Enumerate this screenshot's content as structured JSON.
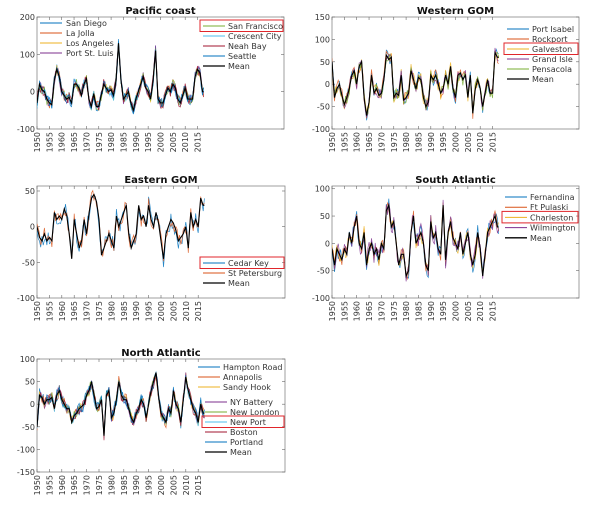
{
  "chart_data": [
    {
      "type": "line",
      "title": "Pacific coast",
      "x_start": 1950,
      "xlim": [
        1950,
        2050
      ],
      "xticks": [
        1950,
        1955,
        1960,
        1965,
        1970,
        1975,
        1980,
        1985,
        1990,
        1995,
        2000,
        2005,
        2010,
        2015
      ],
      "ylim": [
        -100,
        200
      ],
      "yticks": [
        -100,
        0,
        100,
        200
      ],
      "legend_placement": "top-left and top-right",
      "mean": [
        -30,
        20,
        5,
        0,
        -20,
        -30,
        -35,
        30,
        60,
        40,
        0,
        -10,
        -20,
        -15,
        -30,
        20,
        20,
        10,
        -10,
        20,
        35,
        -20,
        -40,
        -5,
        -40,
        -40,
        -10,
        20,
        10,
        0,
        5,
        -10,
        30,
        130,
        30,
        -20,
        -10,
        0,
        -30,
        -50,
        -20,
        0,
        20,
        40,
        10,
        0,
        -20,
        30,
        110,
        -20,
        -30,
        -30,
        -10,
        10,
        0,
        20,
        10,
        -20,
        -30,
        -10,
        10,
        -20,
        -20,
        -20,
        40,
        60,
        50,
        0
      ],
      "series": [
        {
          "name": "San Diego",
          "color": "#0072BD",
          "noise": 15
        },
        {
          "name": "La Jolla",
          "color": "#D95319",
          "noise": 15
        },
        {
          "name": "Los Angeles",
          "color": "#EDB120",
          "noise": 12
        },
        {
          "name": "Port St. Luis",
          "color": "#7E2F8E",
          "noise": 14
        },
        {
          "name": "San Francisco",
          "color": "#77AC30",
          "noise": 14,
          "highlighted": true
        },
        {
          "name": "Crescent City",
          "color": "#4DBEEE",
          "noise": 14
        },
        {
          "name": "Neah Bay",
          "color": "#A2142F",
          "noise": 15
        },
        {
          "name": "Seattle",
          "color": "#0072BD",
          "noise": 12
        },
        {
          "name": "Mean",
          "color": "#000000",
          "is_mean": true
        }
      ]
    },
    {
      "type": "line",
      "title": "Western GOM",
      "x_start": 1950,
      "xlim": [
        1950,
        2050
      ],
      "xticks": [
        1950,
        1955,
        1960,
        1965,
        1970,
        1975,
        1980,
        1985,
        1990,
        1995,
        2000,
        2005,
        2010,
        2015
      ],
      "ylim": [
        -100,
        150
      ],
      "yticks": [
        -100,
        -50,
        0,
        50,
        100,
        150
      ],
      "legend_placement": "top-right",
      "mean": [
        50,
        -30,
        -10,
        0,
        -25,
        -45,
        -30,
        -10,
        20,
        30,
        0,
        40,
        50,
        -30,
        -70,
        -40,
        20,
        -20,
        -10,
        -25,
        -20,
        10,
        65,
        55,
        60,
        -30,
        -20,
        -25,
        20,
        -35,
        -30,
        -20,
        30,
        10,
        -10,
        15,
        10,
        -30,
        -50,
        -40,
        20,
        10,
        20,
        0,
        -20,
        -10,
        20,
        0,
        40,
        -10,
        -30,
        20,
        25,
        10,
        20,
        -30,
        20,
        -65,
        -10,
        10,
        -10,
        -50,
        -20,
        10,
        -20,
        -20,
        70,
        60
      ],
      "series": [
        {
          "name": "Port Isabel",
          "color": "#0072BD",
          "noise": 14
        },
        {
          "name": "Rockport",
          "color": "#D95319",
          "noise": 14
        },
        {
          "name": "Galveston",
          "color": "#EDB120",
          "noise": 15,
          "highlighted": true
        },
        {
          "name": "Grand Isle",
          "color": "#7E2F8E",
          "noise": 12
        },
        {
          "name": "Pensacola",
          "color": "#77AC30",
          "noise": 13
        },
        {
          "name": "Mean",
          "color": "#000000",
          "is_mean": true
        }
      ]
    },
    {
      "type": "line",
      "title": "Eastern GOM",
      "x_start": 1950,
      "xlim": [
        1950,
        2050
      ],
      "xticks": [
        1950,
        1955,
        1960,
        1965,
        1970,
        1975,
        1980,
        1985,
        1990,
        1995,
        2000,
        2005,
        2010,
        2015
      ],
      "ylim": [
        -100,
        57
      ],
      "yticks": [
        -100,
        -50,
        0,
        50
      ],
      "legend_placement": "bottom-right",
      "mean": [
        0,
        -15,
        -20,
        -10,
        -20,
        -15,
        -20,
        20,
        10,
        15,
        10,
        25,
        15,
        -10,
        -45,
        10,
        -10,
        -30,
        -20,
        10,
        -10,
        20,
        40,
        45,
        35,
        10,
        -40,
        -30,
        -20,
        -10,
        -20,
        -30,
        15,
        0,
        10,
        20,
        30,
        -10,
        -30,
        -20,
        -10,
        30,
        10,
        15,
        0,
        30,
        10,
        0,
        20,
        5,
        -20,
        -45,
        -10,
        0,
        10,
        5,
        -5,
        -20,
        -15,
        -10,
        0,
        -30,
        20,
        0,
        10,
        0,
        40,
        30
      ],
      "series": [
        {
          "name": "Cedar Key",
          "color": "#0072BD",
          "noise": 12,
          "highlighted": true
        },
        {
          "name": "St Petersburg",
          "color": "#D95319",
          "noise": 10
        },
        {
          "name": "Mean",
          "color": "#000000",
          "is_mean": true
        }
      ]
    },
    {
      "type": "line",
      "title": "South Atlantic",
      "x_start": 1950,
      "xlim": [
        1950,
        2050
      ],
      "xticks": [
        1950,
        1955,
        1960,
        1965,
        1970,
        1975,
        1980,
        1985,
        1990,
        1995,
        2000,
        2005,
        2010,
        2015
      ],
      "ylim": [
        -100,
        105
      ],
      "yticks": [
        -100,
        -50,
        0,
        50,
        100
      ],
      "legend_placement": "top-right",
      "mean": [
        -10,
        -40,
        -10,
        -20,
        -30,
        -10,
        -20,
        20,
        0,
        30,
        50,
        0,
        -10,
        20,
        -40,
        -10,
        0,
        -20,
        -10,
        -30,
        0,
        -10,
        60,
        70,
        30,
        40,
        0,
        -40,
        -20,
        -20,
        -60,
        -50,
        20,
        50,
        0,
        10,
        20,
        0,
        -40,
        -50,
        40,
        10,
        20,
        -10,
        -20,
        70,
        -30,
        20,
        40,
        10,
        0,
        -10,
        20,
        -20,
        0,
        20,
        -20,
        -40,
        -20,
        20,
        -10,
        -60,
        -20,
        20,
        30,
        40,
        50,
        30
      ],
      "series": [
        {
          "name": "Fernandina",
          "color": "#0072BD",
          "noise": 15
        },
        {
          "name": "Ft Pulaski",
          "color": "#D95319",
          "noise": 12
        },
        {
          "name": "Charleston",
          "color": "#EDB120",
          "noise": 12,
          "highlighted": true
        },
        {
          "name": "Wilmington",
          "color": "#7E2F8E",
          "noise": 16
        },
        {
          "name": "Mean",
          "color": "#000000",
          "is_mean": true
        }
      ]
    },
    {
      "type": "line",
      "title": "North Atlantic",
      "x_start": 1950,
      "xlim": [
        1950,
        2050
      ],
      "xticks": [
        1950,
        1955,
        1960,
        1965,
        1970,
        1975,
        1980,
        1985,
        1990,
        1995,
        2000,
        2005,
        2010,
        2015
      ],
      "ylim": [
        -150,
        100
      ],
      "yticks": [
        -150,
        -100,
        -50,
        0,
        50,
        100
      ],
      "legend_placement": "right",
      "mean": [
        -50,
        20,
        15,
        0,
        10,
        10,
        15,
        -10,
        20,
        30,
        10,
        0,
        -10,
        -10,
        -40,
        -25,
        -20,
        -10,
        -5,
        0,
        20,
        30,
        50,
        20,
        -10,
        -5,
        10,
        -70,
        20,
        30,
        -30,
        -20,
        10,
        50,
        20,
        10,
        10,
        -10,
        -30,
        -40,
        -20,
        -10,
        10,
        0,
        -30,
        0,
        30,
        50,
        70,
        20,
        -20,
        -30,
        -40,
        -10,
        -20,
        30,
        0,
        -10,
        -40,
        10,
        60,
        30,
        10,
        -10,
        -20,
        -40,
        0,
        -20
      ],
      "series": [
        {
          "name": "Hampton Road",
          "color": "#0072BD",
          "noise": 15
        },
        {
          "name": "Annapolis",
          "color": "#D95319",
          "noise": 13
        },
        {
          "name": "Sandy Hook",
          "color": "#EDB120",
          "noise": 11
        },
        {
          "name": "NY Battery",
          "color": "#7E2F8E",
          "noise": 11
        },
        {
          "name": "New London",
          "color": "#77AC30",
          "noise": 10
        },
        {
          "name": "New Port",
          "color": "#4DBEEE",
          "noise": 10,
          "highlighted": true
        },
        {
          "name": "Boston",
          "color": "#A2142F",
          "noise": 12
        },
        {
          "name": "Portland",
          "color": "#0072BD",
          "noise": 12
        },
        {
          "name": "Mean",
          "color": "#000000",
          "is_mean": true
        }
      ]
    }
  ]
}
